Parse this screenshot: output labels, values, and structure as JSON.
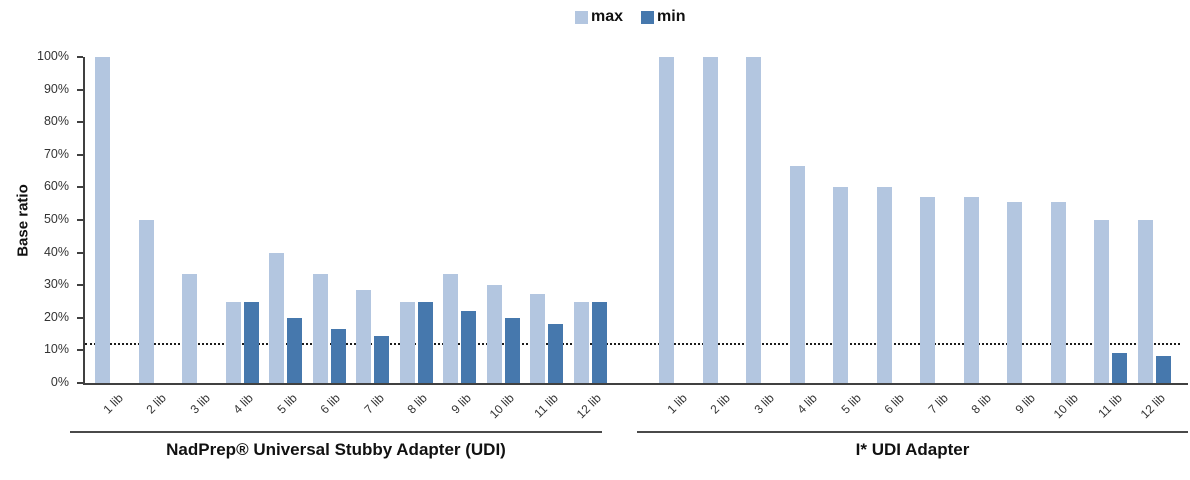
{
  "legend": {
    "items": [
      {
        "label": "max",
        "color": "#b3c6e0"
      },
      {
        "label": "min",
        "color": "#4678ad"
      }
    ]
  },
  "chart_data": {
    "type": "bar",
    "title": "",
    "ylabel": "Base ratio",
    "xlabel": "",
    "ylim": [
      0,
      100
    ],
    "ytick_labels": [
      "0%",
      "10%",
      "20%",
      "30%",
      "40%",
      "50%",
      "60%",
      "70%",
      "80%",
      "90%",
      "100%"
    ],
    "ytick_values": [
      0,
      10,
      20,
      30,
      40,
      50,
      60,
      70,
      80,
      90,
      100
    ],
    "grid": false,
    "legend_position": "top-center",
    "threshold_line": {
      "value_pct": 12,
      "style": "dotted"
    },
    "series_colors": {
      "max": "#b3c6e0",
      "min": "#4678ad"
    },
    "axis_color": "#404040",
    "groups": [
      {
        "title": "NadPrep® Universal Stubby Adapter (UDI)",
        "categories": [
          "1 lib",
          "2 lib",
          "3 lib",
          "4 lib",
          "5 lib",
          "6 lib",
          "7 lib",
          "8 lib",
          "9 lib",
          "10 lib",
          "11 lib",
          "12 lib"
        ],
        "series": [
          {
            "name": "max",
            "values": [
              100,
              50,
              33.3,
              25,
              40,
              33.3,
              28.6,
              25,
              33.3,
              30,
              27.3,
              25
            ]
          },
          {
            "name": "min",
            "values": [
              0,
              0,
              0,
              25,
              20,
              16.7,
              14.3,
              25,
              22.2,
              20,
              18.2,
              25
            ]
          }
        ]
      },
      {
        "title": "I* UDI Adapter",
        "categories": [
          "1 lib",
          "2 lib",
          "3 lib",
          "4 lib",
          "5 lib",
          "6 lib",
          "7 lib",
          "8 lib",
          "9 lib",
          "10 lib",
          "11 lib",
          "12 lib"
        ],
        "series": [
          {
            "name": "max",
            "values": [
              100,
              100,
              100,
              66.7,
              60,
              60,
              57.1,
              57.1,
              55.6,
              55.6,
              50,
              50
            ]
          },
          {
            "name": "min",
            "values": [
              0,
              0,
              0,
              0,
              0,
              0,
              0,
              0,
              0,
              0,
              9.1,
              8.3
            ]
          }
        ]
      }
    ]
  }
}
